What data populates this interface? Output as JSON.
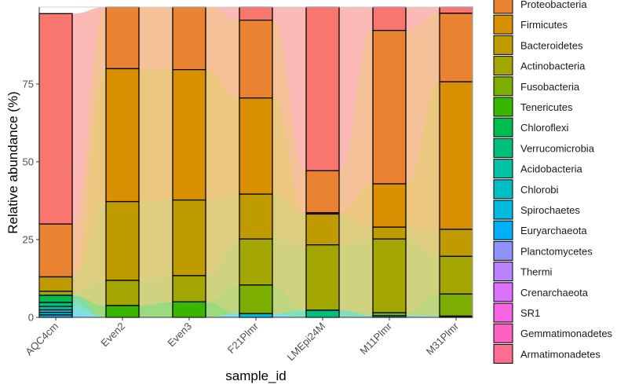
{
  "chart_data": {
    "type": "bar",
    "subtype": "stacked bar with alluvial flows",
    "xlabel": "sample_id",
    "ylabel": "Relative abundance (%)",
    "ylim": [
      0,
      100
    ],
    "yticks": [
      0,
      25,
      50,
      75
    ],
    "grid": false,
    "legend_position": "right",
    "categories": [
      "AQC4cm",
      "Even2",
      "Even3",
      "F21Plmr",
      "LMEpi24M",
      "M11Plmr",
      "M31Plmr"
    ],
    "series": [
      {
        "name": "",
        "color": "#F8766D",
        "values": [
          67.6,
          0,
          0,
          4.2,
          52.6,
          7.5,
          2.0
        ]
      },
      {
        "name": "Proteobacteria",
        "color": "#EA8331",
        "values": [
          17.0,
          19.8,
          20.1,
          25.0,
          13.5,
          49.3,
          22.0
        ]
      },
      {
        "name": "Firmicutes",
        "color": "#D89000",
        "values": [
          0,
          42.7,
          41.9,
          30.9,
          0.4,
          13.9,
          47.4
        ]
      },
      {
        "name": "Bacteroidetes",
        "color": "#C09B00",
        "values": [
          4.6,
          25.3,
          24.3,
          14.4,
          9.9,
          3.8,
          8.7
        ]
      },
      {
        "name": "Actinobacteria",
        "color": "#A3A500",
        "values": [
          1.3,
          8.1,
          8.4,
          14.8,
          21.0,
          23.7,
          12.1
        ]
      },
      {
        "name": "Fusobacteria",
        "color": "#7CAE00",
        "values": [
          0,
          0,
          0,
          9.2,
          0,
          1.0,
          7.1
        ]
      },
      {
        "name": "Tenericutes",
        "color": "#39B600",
        "values": [
          0,
          3.8,
          5.0,
          0,
          0,
          0,
          0
        ]
      },
      {
        "name": "Chloroflexi",
        "color": "#00BB4E",
        "values": [
          2.3,
          0,
          0,
          0,
          0,
          0,
          0
        ]
      },
      {
        "name": "Verrucomicrobia",
        "color": "#00BF7D",
        "values": [
          1.3,
          0,
          0,
          0,
          2.3,
          0,
          0
        ]
      },
      {
        "name": "Acidobacteria",
        "color": "#00C1A3",
        "values": [
          1.1,
          0,
          0,
          0,
          0,
          0,
          0
        ]
      },
      {
        "name": "Chlorobi",
        "color": "#00BFC4",
        "values": [
          0.8,
          0,
          0,
          0,
          0,
          0,
          0.2
        ]
      },
      {
        "name": "Spirochaetes",
        "color": "#00BAE0",
        "values": [
          0.8,
          0,
          0,
          1.2,
          0,
          0,
          0
        ]
      },
      {
        "name": "Euryarchaeota",
        "color": "#00B0F6",
        "values": [
          0.8,
          0,
          0,
          0,
          0,
          0.5,
          0.2
        ]
      },
      {
        "name": "Planctomycetes",
        "color": "#8F91FF",
        "values": [
          0,
          0,
          0,
          0,
          0,
          0,
          0
        ]
      },
      {
        "name": "Thermi",
        "color": "#B983FF",
        "values": [
          0,
          0,
          0,
          0,
          0,
          0,
          0
        ]
      },
      {
        "name": "Crenarchaeota",
        "color": "#DC71FA",
        "values": [
          0,
          0,
          0,
          0,
          0,
          0,
          0
        ]
      },
      {
        "name": "SR1",
        "color": "#F564E3",
        "values": [
          0,
          0,
          0,
          0,
          0,
          0,
          0
        ]
      },
      {
        "name": "Gemmatimonadetes",
        "color": "#FF61C3",
        "values": [
          0,
          0,
          0,
          0,
          0,
          0,
          0
        ]
      },
      {
        "name": "Armatimonadetes",
        "color": "#FF6C91",
        "values": [
          0,
          0,
          0,
          0,
          0,
          0,
          0
        ]
      }
    ]
  }
}
